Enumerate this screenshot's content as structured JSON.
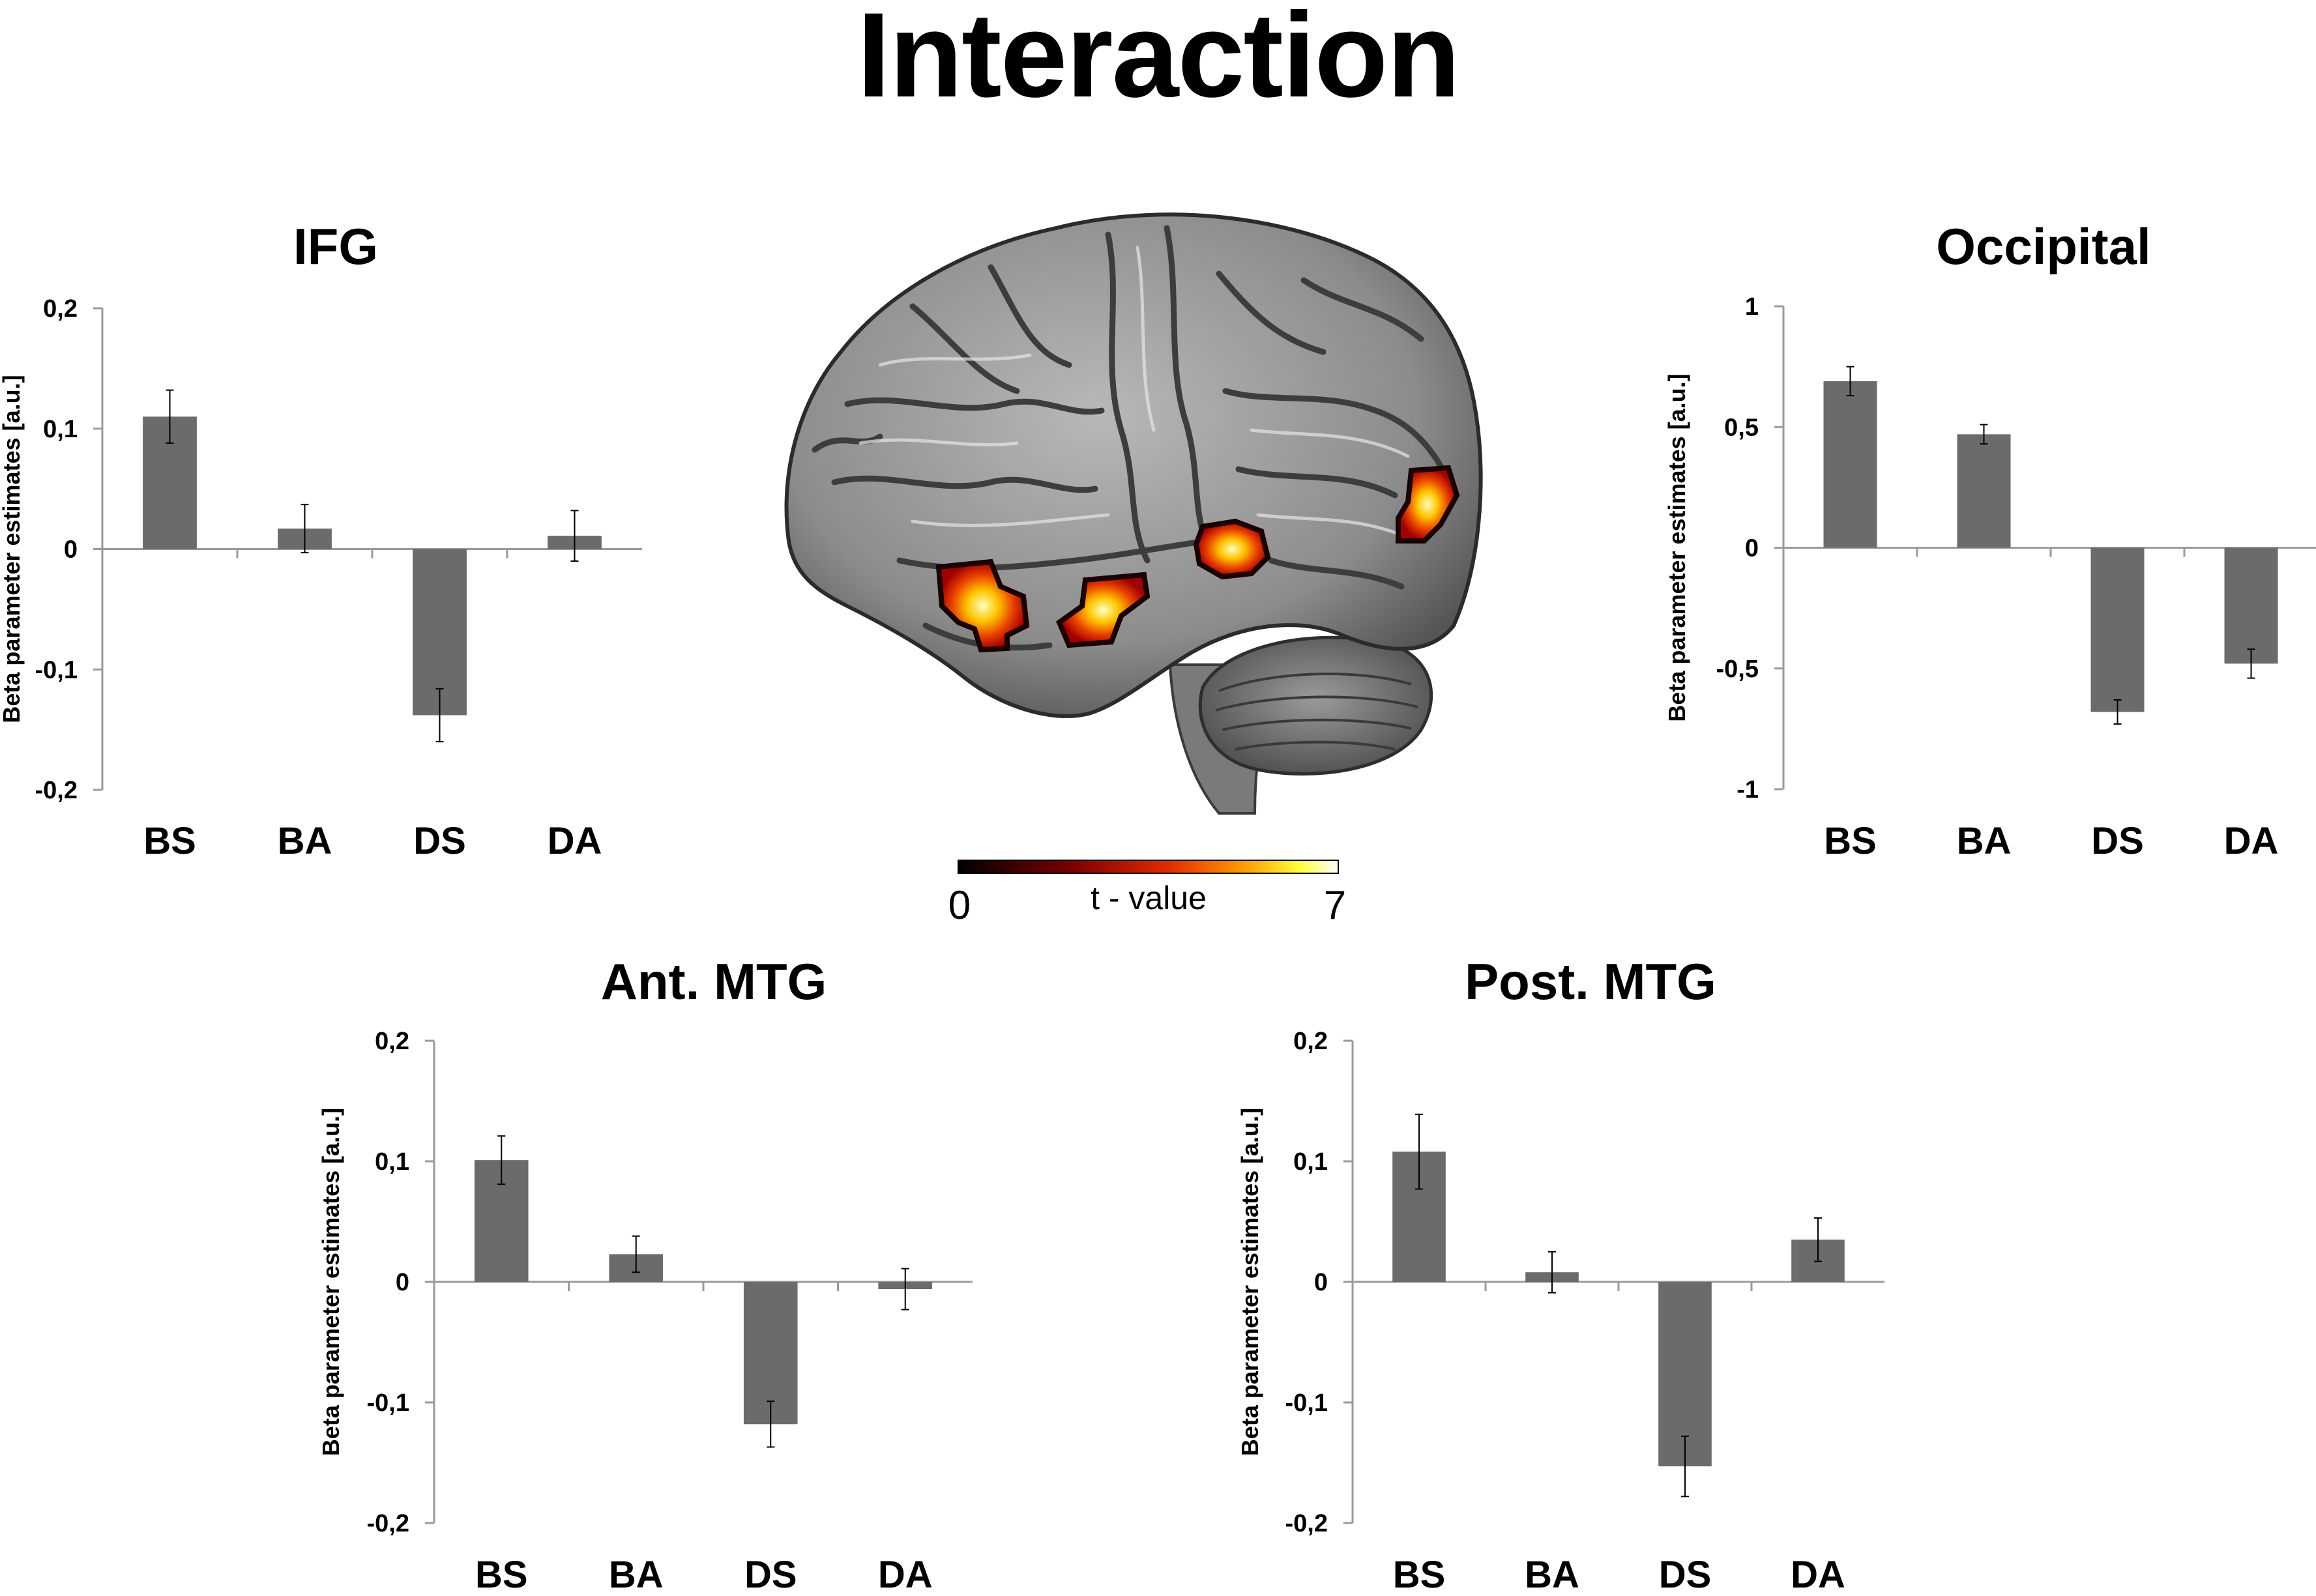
{
  "figure_title": "Interaction",
  "colorbar": {
    "min_label": "0",
    "max_label": "7",
    "label": "t - value"
  },
  "chart_data": [
    {
      "type": "bar",
      "title": "IFG",
      "ylabel": "Beta parameter estimates [a.u.]",
      "categories": [
        "BS",
        "BA",
        "DS",
        "DA"
      ],
      "values": [
        0.11,
        0.017,
        -0.138,
        0.011
      ],
      "errors": [
        0.022,
        0.02,
        0.022,
        0.021
      ],
      "ylim": [
        -0.2,
        0.2
      ],
      "yticks": [
        0.2,
        0.1,
        0,
        -0.1,
        -0.2
      ],
      "ytick_labels": [
        "0,2",
        "0,1",
        "0",
        "-0,1",
        "-0,2"
      ],
      "bar_color": "#6b6b6b"
    },
    {
      "type": "bar",
      "title": "Occipital",
      "ylabel": "Beta parameter estimates [a.u.]",
      "categories": [
        "BS",
        "BA",
        "DS",
        "DA"
      ],
      "values": [
        0.69,
        0.47,
        -0.68,
        -0.48
      ],
      "errors": [
        0.06,
        0.04,
        0.05,
        0.06
      ],
      "ylim": [
        -1,
        1
      ],
      "yticks": [
        1,
        0.5,
        0,
        -0.5,
        -1
      ],
      "ytick_labels": [
        "1",
        "0,5",
        "0",
        "-0,5",
        "-1"
      ],
      "bar_color": "#6b6b6b"
    },
    {
      "type": "bar",
      "title": "Ant. MTG",
      "ylabel": "Beta parameter estimates [a.u.]",
      "categories": [
        "BS",
        "BA",
        "DS",
        "DA"
      ],
      "values": [
        0.101,
        0.023,
        -0.118,
        -0.006
      ],
      "errors": [
        0.02,
        0.015,
        0.019,
        0.017
      ],
      "ylim": [
        -0.2,
        0.2
      ],
      "yticks": [
        0.2,
        0.1,
        0,
        -0.1,
        -0.2
      ],
      "ytick_labels": [
        "0,2",
        "0,1",
        "0",
        "-0,1",
        "-0,2"
      ],
      "bar_color": "#6b6b6b"
    },
    {
      "type": "bar",
      "title": "Post. MTG",
      "ylabel": "Beta parameter estimates [a.u.]",
      "categories": [
        "BS",
        "BA",
        "DS",
        "DA"
      ],
      "values": [
        0.108,
        0.008,
        -0.153,
        0.035
      ],
      "errors": [
        0.031,
        0.017,
        0.025,
        0.018
      ],
      "ylim": [
        -0.2,
        0.2
      ],
      "yticks": [
        0.2,
        0.1,
        0,
        -0.1,
        -0.2
      ],
      "ytick_labels": [
        "0,2",
        "0,1",
        "0",
        "-0,1",
        "-0,2"
      ],
      "bar_color": "#6b6b6b"
    }
  ]
}
